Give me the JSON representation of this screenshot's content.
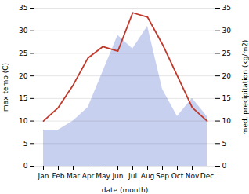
{
  "chart_data": {
    "type": "line",
    "categories": [
      "Jan",
      "Feb",
      "Mar",
      "Apr",
      "May",
      "Jun",
      "Jul",
      "Aug",
      "Sep",
      "Oct",
      "Nov",
      "Dec"
    ],
    "xlabel": "date (month)",
    "ylabel": "max temp (C)",
    "y2label": "med. precipitation (kg/m2)",
    "series": [
      {
        "type": "area",
        "axis": "y2",
        "color": "#c8d0f0",
        "values": [
          8,
          8,
          10,
          13,
          21,
          29,
          26,
          31,
          17,
          11,
          15,
          11
        ]
      },
      {
        "type": "line",
        "color": "#c0392b",
        "values": [
          10,
          13,
          18,
          24,
          26.5,
          25.5,
          34,
          33,
          27,
          20,
          13,
          10
        ]
      }
    ],
    "ylim": [
      0,
      35
    ],
    "yticks": [
      0,
      5,
      10,
      15,
      20,
      25,
      30,
      35
    ],
    "y2lim": [
      0,
      35
    ],
    "y2ticks": [
      0,
      5,
      10,
      15,
      20,
      25,
      30,
      35
    ],
    "grid": true
  }
}
